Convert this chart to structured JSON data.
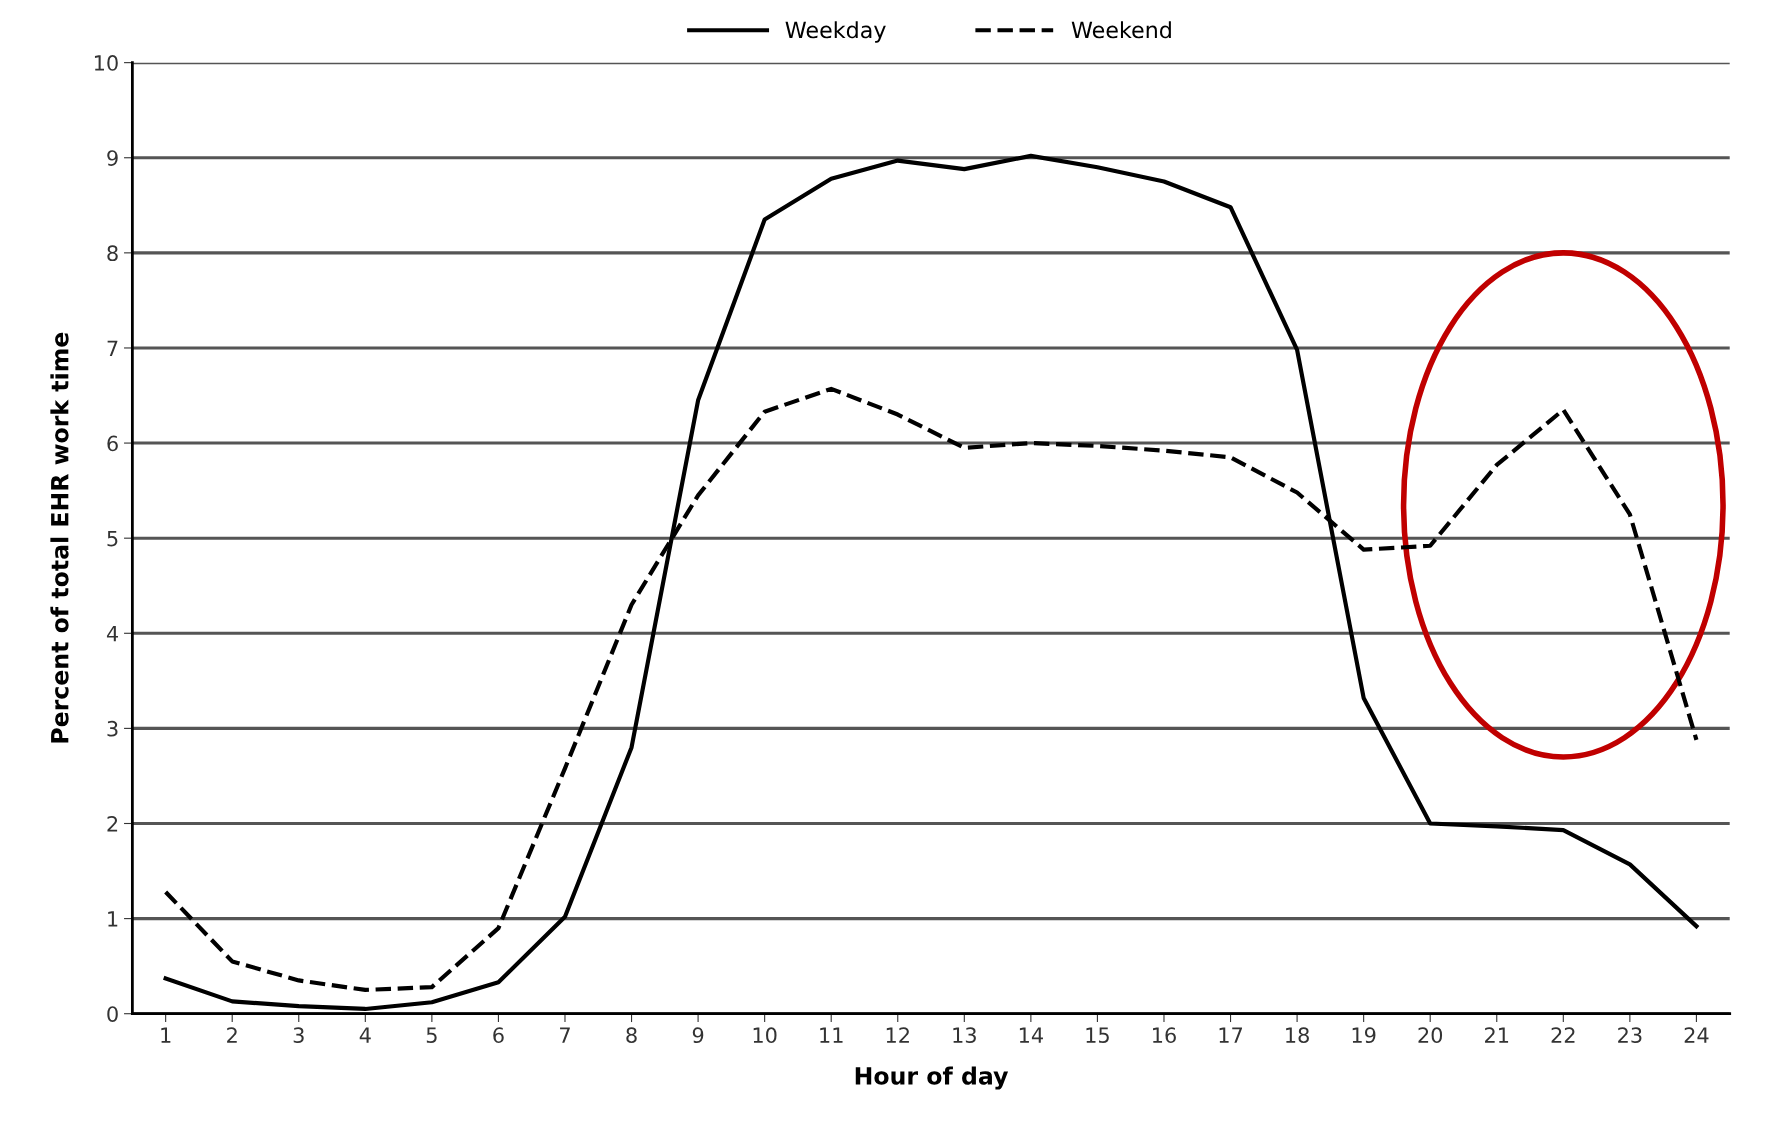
{
  "chart_data": {
    "type": "line",
    "xlabel": "Hour of day",
    "ylabel": "Percent of total EHR work time",
    "x": [
      1,
      2,
      3,
      4,
      5,
      6,
      7,
      8,
      9,
      10,
      11,
      12,
      13,
      14,
      15,
      16,
      17,
      18,
      19,
      20,
      21,
      22,
      23,
      24
    ],
    "series": [
      {
        "name": "Weekday",
        "color": "#000000",
        "line_style": "solid",
        "values": [
          0.37,
          0.13,
          0.08,
          0.05,
          0.12,
          0.33,
          1.02,
          2.8,
          6.45,
          8.35,
          8.78,
          8.97,
          8.88,
          9.02,
          8.9,
          8.75,
          8.48,
          6.98,
          3.32,
          2.0,
          1.97,
          1.93,
          1.57,
          0.92
        ]
      },
      {
        "name": "Weekend",
        "color": "#000000",
        "line_style": "dashed",
        "values": [
          1.28,
          0.55,
          0.35,
          0.25,
          0.28,
          0.9,
          2.58,
          4.3,
          5.45,
          6.33,
          6.57,
          6.3,
          5.95,
          6.0,
          5.97,
          5.92,
          5.85,
          5.48,
          4.88,
          4.92,
          5.77,
          6.35,
          5.25,
          2.88
        ]
      }
    ],
    "xlim": [
      0.5,
      24.5
    ],
    "xticks": [
      1,
      2,
      3,
      4,
      5,
      6,
      7,
      8,
      9,
      10,
      11,
      12,
      13,
      14,
      15,
      16,
      17,
      18,
      19,
      20,
      21,
      22,
      23,
      24
    ],
    "ylim": [
      0,
      10
    ],
    "yticks": [
      0,
      1,
      2,
      3,
      4,
      5,
      6,
      7,
      8,
      9,
      10
    ],
    "grid": "y",
    "legend": "top",
    "marker": "none"
  }
}
